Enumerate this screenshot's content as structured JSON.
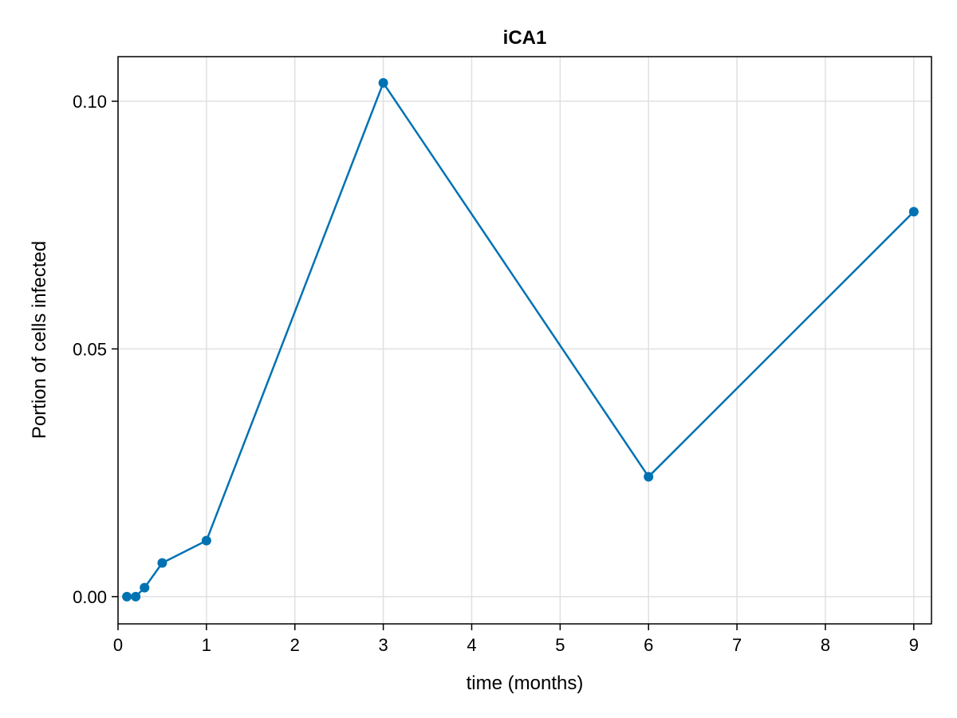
{
  "chart_data": {
    "type": "line",
    "title": "iCA1",
    "xlabel": "time (months)",
    "ylabel": "Portion of cells infected",
    "xlim": [
      0,
      9.2
    ],
    "ylim": [
      -0.0055,
      0.109
    ],
    "x_ticks": [
      0,
      1,
      2,
      3,
      4,
      5,
      6,
      7,
      8,
      9
    ],
    "x_tick_labels": [
      "0",
      "1",
      "2",
      "3",
      "4",
      "5",
      "6",
      "7",
      "8",
      "9"
    ],
    "y_ticks": [
      0.0,
      0.05,
      0.1
    ],
    "y_tick_labels": [
      "0.00",
      "0.05",
      "0.10"
    ],
    "grid": true,
    "series": [
      {
        "color": "#0072b2",
        "markers": true,
        "x": [
          0.1,
          0.2,
          0.3,
          0.5,
          1,
          3,
          6,
          9
        ],
        "y": [
          0.0,
          0.0,
          0.0018,
          0.0068,
          0.0113,
          0.1037,
          0.0242,
          0.0777
        ]
      }
    ]
  }
}
